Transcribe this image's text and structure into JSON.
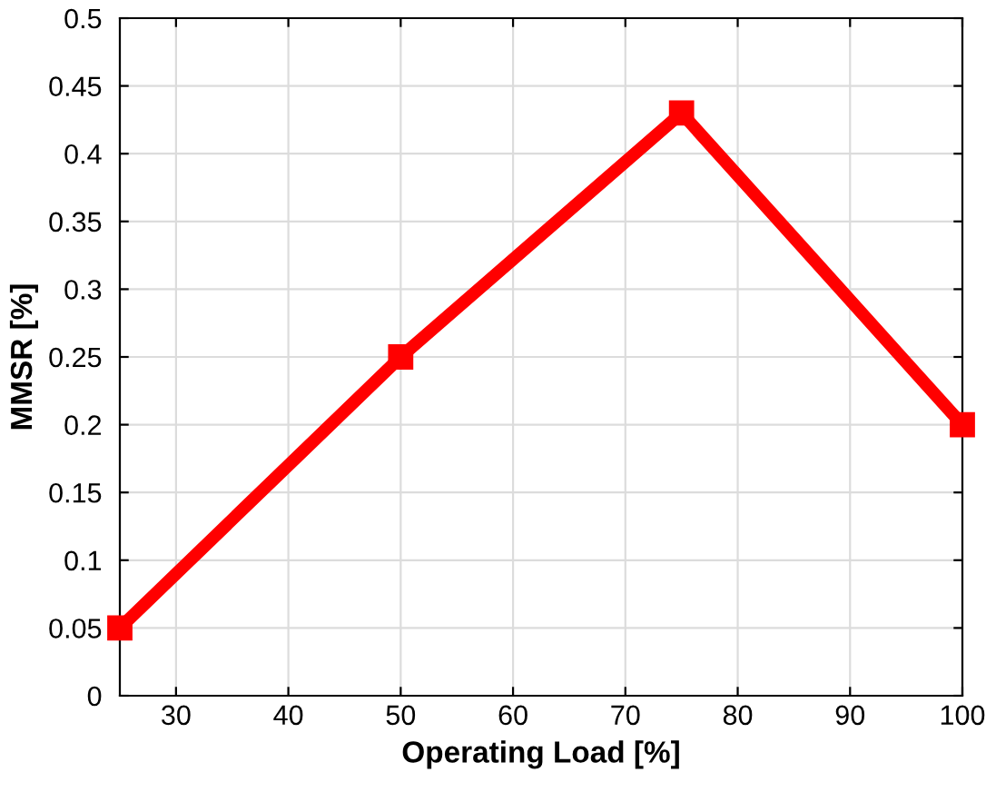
{
  "chart_data": {
    "type": "line",
    "xlabel": "Operating Load [%]",
    "ylabel": "MMSR [%]",
    "x": [
      25,
      50,
      75,
      100
    ],
    "series": [
      {
        "color": "#ff0000",
        "values": [
          0.05,
          0.25,
          0.43,
          0.2
        ]
      }
    ],
    "xlim": [
      25,
      100
    ],
    "xticks": [
      30,
      40,
      50,
      60,
      70,
      80,
      90,
      100
    ],
    "ylim": [
      0,
      0.5
    ],
    "yticks": [
      0,
      0.05,
      0.1,
      0.15,
      0.2,
      0.25,
      0.3,
      0.35,
      0.4,
      0.45,
      0.5
    ],
    "grid": true,
    "marker": "square",
    "line_style": "solid"
  }
}
